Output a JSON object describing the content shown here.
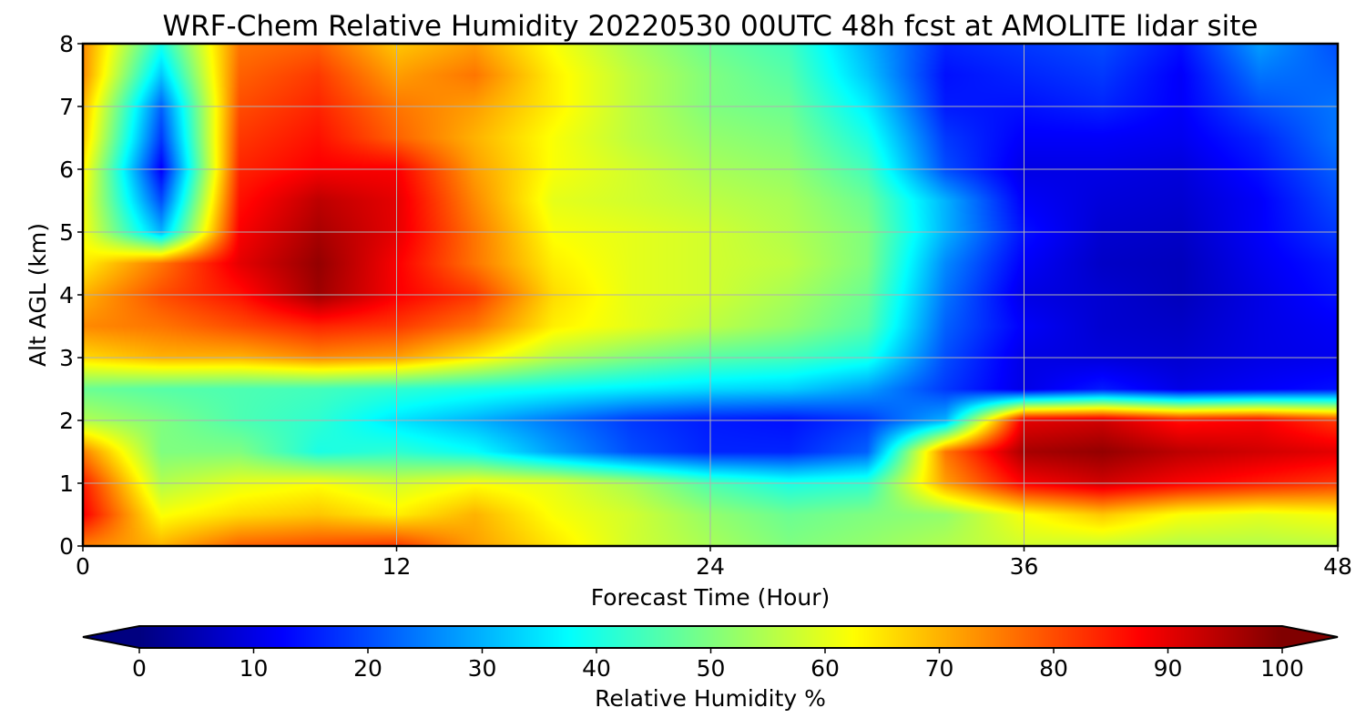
{
  "chart_data": {
    "type": "heatmap",
    "title": "WRF-Chem Relative Humidity 20220530 00UTC 48h fcst at AMOLITE lidar site",
    "xlabel": "Forecast Time (Hour)",
    "ylabel": "Alt AGL (km)",
    "xlim": [
      0,
      48
    ],
    "ylim": [
      0,
      8
    ],
    "x_ticks": [
      0,
      12,
      24,
      36,
      48
    ],
    "y_ticks": [
      0,
      1,
      2,
      3,
      4,
      5,
      6,
      7,
      8
    ],
    "grid": true,
    "colormap": "jet",
    "colorbar": {
      "label": "Relative Humidity %",
      "range": [
        0,
        100
      ],
      "ticks": [
        0,
        10,
        20,
        30,
        40,
        50,
        60,
        70,
        80,
        90,
        100
      ],
      "extend": "both",
      "orientation": "horizontal",
      "placement": "bottom"
    },
    "x": [
      0,
      3,
      6,
      9,
      12,
      15,
      18,
      21,
      24,
      27,
      30,
      33,
      36,
      39,
      42,
      45,
      48
    ],
    "y": [
      0,
      0.5,
      1,
      1.5,
      2,
      2.5,
      3,
      3.5,
      4,
      4.5,
      5,
      5.5,
      6,
      6.5,
      7,
      7.5,
      8
    ],
    "z": [
      [
        75,
        70,
        78,
        80,
        82,
        72,
        65,
        58,
        54,
        50,
        52,
        55,
        58,
        57,
        55,
        55,
        56
      ],
      [
        88,
        62,
        66,
        68,
        64,
        70,
        62,
        58,
        52,
        48,
        50,
        52,
        62,
        68,
        62,
        60,
        62
      ],
      [
        85,
        55,
        60,
        62,
        58,
        62,
        60,
        54,
        45,
        40,
        42,
        72,
        88,
        92,
        88,
        85,
        82
      ],
      [
        75,
        50,
        50,
        40,
        42,
        38,
        28,
        20,
        16,
        16,
        22,
        76,
        96,
        98,
        94,
        92,
        90
      ],
      [
        55,
        50,
        45,
        42,
        35,
        30,
        24,
        18,
        15,
        14,
        18,
        30,
        90,
        92,
        86,
        88,
        82
      ],
      [
        48,
        46,
        45,
        44,
        42,
        40,
        38,
        36,
        34,
        33,
        28,
        18,
        10,
        15,
        10,
        12,
        14
      ],
      [
        66,
        70,
        70,
        74,
        72,
        64,
        55,
        50,
        46,
        44,
        40,
        20,
        10,
        9,
        8,
        10,
        11
      ],
      [
        74,
        76,
        80,
        84,
        82,
        76,
        64,
        60,
        56,
        52,
        46,
        22,
        12,
        8,
        7,
        10,
        12
      ],
      [
        70,
        80,
        86,
        97,
        88,
        82,
        66,
        60,
        58,
        54,
        48,
        24,
        10,
        8,
        6,
        10,
        14
      ],
      [
        64,
        76,
        90,
        98,
        88,
        76,
        64,
        60,
        58,
        56,
        50,
        26,
        12,
        7,
        6,
        11,
        15
      ],
      [
        62,
        30,
        88,
        96,
        90,
        76,
        62,
        60,
        58,
        55,
        50,
        30,
        14,
        8,
        7,
        12,
        18
      ],
      [
        62,
        20,
        86,
        94,
        90,
        74,
        60,
        58,
        56,
        54,
        48,
        30,
        12,
        9,
        8,
        12,
        20
      ],
      [
        64,
        12,
        84,
        88,
        88,
        72,
        62,
        58,
        54,
        52,
        44,
        20,
        10,
        10,
        9,
        14,
        22
      ],
      [
        68,
        18,
        82,
        86,
        78,
        70,
        62,
        56,
        52,
        50,
        40,
        18,
        12,
        12,
        11,
        16,
        24
      ],
      [
        70,
        22,
        80,
        84,
        76,
        72,
        64,
        56,
        50,
        48,
        36,
        15,
        14,
        16,
        12,
        20,
        24
      ],
      [
        74,
        32,
        78,
        82,
        72,
        76,
        64,
        56,
        50,
        46,
        32,
        14,
        16,
        18,
        12,
        24,
        22
      ],
      [
        74,
        40,
        76,
        78,
        68,
        72,
        62,
        54,
        48,
        44,
        30,
        16,
        18,
        20,
        14,
        28,
        20
      ]
    ]
  }
}
